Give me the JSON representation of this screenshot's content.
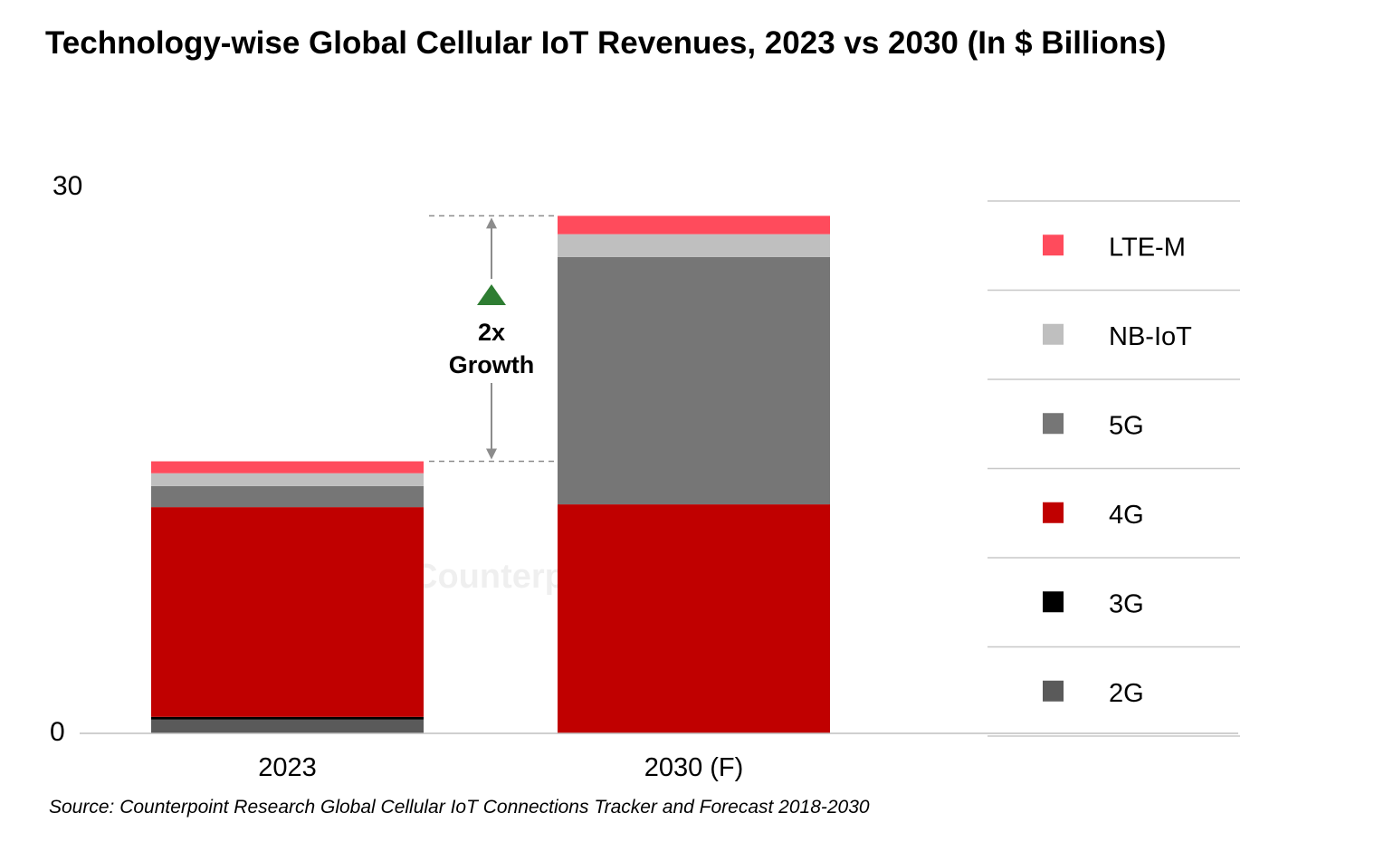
{
  "chart_data": {
    "type": "bar",
    "stacked": true,
    "title": "Technology-wise Global Cellular IoT Revenues, 2023 vs 2030 (In $ Billions)",
    "xlabel": "",
    "ylabel": "",
    "ylim": [
      0,
      30
    ],
    "yticks": [
      "0",
      "30"
    ],
    "grid": false,
    "legend_position": "right",
    "categories": [
      "2023",
      "2030 (F)"
    ],
    "series": [
      {
        "name": "2G",
        "color": "#5a5a5a",
        "values": [
          0.75,
          0.0
        ]
      },
      {
        "name": "3G",
        "color": "#000000",
        "values": [
          0.15,
          0.0
        ]
      },
      {
        "name": "4G",
        "color": "#c00000",
        "values": [
          11.45,
          12.5
        ]
      },
      {
        "name": "5G",
        "color": "#767676",
        "values": [
          1.15,
          13.5
        ]
      },
      {
        "name": "NB-IoT",
        "color": "#bfbfbf",
        "values": [
          0.7,
          1.25
        ]
      },
      {
        "name": "LTE-M",
        "color": "#ff4b5c",
        "values": [
          0.65,
          1.0
        ]
      }
    ],
    "legend_order": [
      "LTE-M",
      "NB-IoT",
      "5G",
      "4G",
      "3G",
      "2G"
    ],
    "annotation": {
      "line1": "2x",
      "line2": "Growth",
      "marker_color": "#2e7d32",
      "from_category": "2023",
      "to_category": "2030 (F)"
    },
    "watermark": "Counterpoint",
    "source": "Source: Counterpoint Research Global Cellular IoT Connections Tracker and Forecast 2018-2030"
  }
}
